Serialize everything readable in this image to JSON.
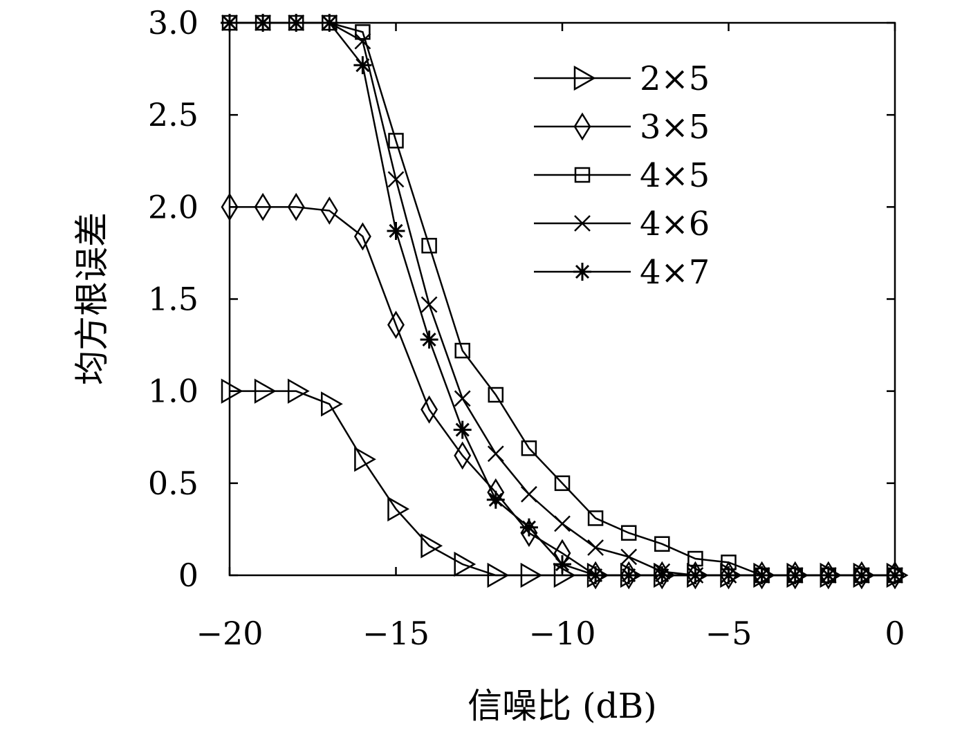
{
  "chart_data": {
    "type": "line",
    "title": "",
    "xlabel": "信噪比 (dB)",
    "ylabel": "均方根误差",
    "xlim": [
      -20,
      0
    ],
    "ylim": [
      0,
      3.0
    ],
    "x_ticks": [
      -20,
      -15,
      -10,
      -5,
      0
    ],
    "x_tick_labels": [
      "−20",
      "−15",
      "−10",
      "−5",
      "0"
    ],
    "y_ticks": [
      0,
      0.5,
      1.0,
      1.5,
      2.0,
      2.5,
      3.0
    ],
    "y_tick_labels": [
      "0",
      "0.5",
      "1.0",
      "1.5",
      "2.0",
      "2.5",
      "3.0"
    ],
    "grid": false,
    "legend_position": "top-right",
    "x": [
      -20,
      -19,
      -18,
      -17,
      -16,
      -15,
      -14,
      -13,
      -12,
      -11,
      -10,
      -9,
      -8,
      -7,
      -6,
      -5,
      -4,
      -3,
      -2,
      -1,
      0
    ],
    "series": [
      {
        "name": "2×5",
        "marker": "triangle-right",
        "values": [
          1.0,
          1.0,
          1.0,
          0.93,
          0.63,
          0.36,
          0.16,
          0.06,
          0.0,
          0.0,
          0.0,
          0.0,
          0.0,
          0.0,
          0.0,
          0.0,
          0.0,
          0.0,
          0.0,
          0.0,
          0.0
        ]
      },
      {
        "name": "3×5",
        "marker": "diamond",
        "values": [
          2.0,
          2.0,
          2.0,
          1.98,
          1.84,
          1.36,
          0.9,
          0.65,
          0.45,
          0.23,
          0.12,
          0.0,
          0.0,
          0.0,
          0.0,
          0.0,
          0.0,
          0.0,
          0.0,
          0.0,
          0.0
        ]
      },
      {
        "name": "4×5",
        "marker": "square",
        "values": [
          3.0,
          3.0,
          3.0,
          3.0,
          2.95,
          2.36,
          1.79,
          1.22,
          0.98,
          0.69,
          0.5,
          0.31,
          0.23,
          0.17,
          0.09,
          0.07,
          0.0,
          0.0,
          0.0,
          0.0,
          0.0
        ]
      },
      {
        "name": "4×6",
        "marker": "x",
        "values": [
          3.0,
          3.0,
          3.0,
          3.0,
          2.9,
          2.15,
          1.47,
          0.96,
          0.66,
          0.44,
          0.28,
          0.15,
          0.1,
          0.02,
          0.0,
          0.0,
          0.0,
          0.0,
          0.0,
          0.0,
          0.0
        ]
      },
      {
        "name": "4×7",
        "marker": "star",
        "values": [
          3.0,
          3.0,
          3.0,
          3.0,
          2.77,
          1.87,
          1.28,
          0.79,
          0.41,
          0.26,
          0.06,
          0.0,
          0.0,
          0.0,
          0.0,
          0.0,
          0.0,
          0.0,
          0.0,
          0.0,
          0.0
        ]
      }
    ]
  }
}
